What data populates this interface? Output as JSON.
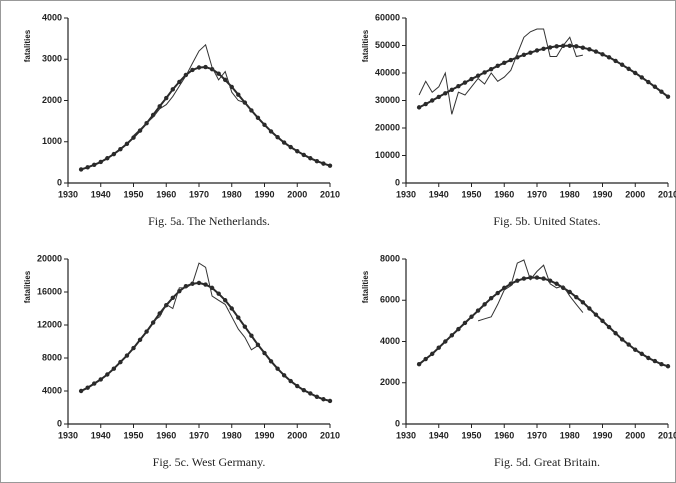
{
  "chart_data": [
    {
      "type": "line",
      "caption": "Fig. 5a. The Netherlands.",
      "ylabel": "fatalities",
      "x": [
        1934,
        1936,
        1938,
        1940,
        1942,
        1944,
        1946,
        1948,
        1950,
        1952,
        1954,
        1956,
        1958,
        1960,
        1962,
        1964,
        1966,
        1968,
        1970,
        1972,
        1974,
        1976,
        1978,
        1980,
        1982,
        1984,
        1986,
        1988,
        1990,
        1992,
        1994,
        1996,
        1998,
        2000,
        2002,
        2004,
        2006,
        2008,
        2010
      ],
      "xlim": [
        1930,
        2010
      ],
      "xticks": [
        1930,
        1940,
        1950,
        1960,
        1970,
        1980,
        1990,
        2000,
        2010
      ],
      "ylim": [
        0,
        4000
      ],
      "yticks": [
        0,
        1000,
        2000,
        3000,
        4000
      ],
      "series": [
        {
          "color": "#2a2a2a",
          "markers": true,
          "values": [
            330,
            380,
            440,
            510,
            600,
            700,
            820,
            950,
            1100,
            1270,
            1450,
            1650,
            1860,
            2060,
            2270,
            2450,
            2620,
            2740,
            2800,
            2810,
            2760,
            2650,
            2500,
            2330,
            2140,
            1950,
            1760,
            1580,
            1410,
            1250,
            1110,
            980,
            870,
            770,
            680,
            600,
            530,
            470,
            420
          ]
        },
        {
          "color": "#333333",
          "markers": false,
          "values": [
            null,
            null,
            null,
            null,
            null,
            null,
            null,
            null,
            1150,
            1300,
            1450,
            1600,
            1800,
            1900,
            2100,
            2350,
            2600,
            2900,
            3200,
            3350,
            2800,
            2500,
            2700,
            2200,
            2000,
            1950,
            1750,
            null,
            null,
            null,
            null,
            null,
            null,
            null,
            null,
            null,
            null,
            null,
            null
          ]
        }
      ]
    },
    {
      "type": "line",
      "caption": "Fig. 5b. United States.",
      "ylabel": "fatalities",
      "x": [
        1934,
        1936,
        1938,
        1940,
        1942,
        1944,
        1946,
        1948,
        1950,
        1952,
        1954,
        1956,
        1958,
        1960,
        1962,
        1964,
        1966,
        1968,
        1970,
        1972,
        1974,
        1976,
        1978,
        1980,
        1982,
        1984,
        1986,
        1988,
        1990,
        1992,
        1994,
        1996,
        1998,
        2000,
        2002,
        2004,
        2006,
        2008,
        2010
      ],
      "xlim": [
        1930,
        2010
      ],
      "xticks": [
        1930,
        1940,
        1950,
        1960,
        1970,
        1980,
        1990,
        2000,
        2010
      ],
      "ylim": [
        0,
        60000
      ],
      "yticks": [
        0,
        10000,
        20000,
        30000,
        40000,
        50000,
        60000
      ],
      "series": [
        {
          "color": "#2a2a2a",
          "markers": true,
          "values": [
            27500,
            28700,
            30000,
            31300,
            32600,
            33900,
            35200,
            36500,
            37800,
            39000,
            40200,
            41400,
            42600,
            43700,
            44700,
            45700,
            46600,
            47400,
            48200,
            48800,
            49300,
            49700,
            49900,
            49900,
            49700,
            49200,
            48600,
            47800,
            46800,
            45700,
            44400,
            43000,
            41500,
            40000,
            38400,
            36700,
            35000,
            33200,
            31400
          ]
        },
        {
          "color": "#333333",
          "markers": false,
          "values": [
            32000,
            37000,
            33000,
            35000,
            40000,
            25000,
            33000,
            32000,
            35000,
            38000,
            36000,
            40000,
            37000,
            38500,
            41000,
            47000,
            53000,
            55000,
            56000,
            56000,
            46000,
            46000,
            50000,
            53000,
            46000,
            46500,
            null,
            null,
            null,
            null,
            null,
            null,
            null,
            null,
            null,
            null,
            null,
            null,
            null
          ]
        }
      ]
    },
    {
      "type": "line",
      "caption": "Fig. 5c. West Germany.",
      "ylabel": "fatalities",
      "x": [
        1934,
        1936,
        1938,
        1940,
        1942,
        1944,
        1946,
        1948,
        1950,
        1952,
        1954,
        1956,
        1958,
        1960,
        1962,
        1964,
        1966,
        1968,
        1970,
        1972,
        1974,
        1976,
        1978,
        1980,
        1982,
        1984,
        1986,
        1988,
        1990,
        1992,
        1994,
        1996,
        1998,
        2000,
        2002,
        2004,
        2006,
        2008,
        2010
      ],
      "xlim": [
        1930,
        2010
      ],
      "xticks": [
        1930,
        1940,
        1950,
        1960,
        1970,
        1980,
        1990,
        2000,
        2010
      ],
      "ylim": [
        0,
        20000
      ],
      "yticks": [
        0,
        4000,
        8000,
        12000,
        16000,
        20000
      ],
      "series": [
        {
          "color": "#2a2a2a",
          "markers": true,
          "values": [
            4000,
            4400,
            4900,
            5400,
            6000,
            6700,
            7500,
            8300,
            9200,
            10200,
            11200,
            12300,
            13400,
            14400,
            15300,
            16100,
            16700,
            17000,
            17100,
            16900,
            16500,
            15800,
            15000,
            14000,
            12900,
            11800,
            10700,
            9600,
            8600,
            7600,
            6700,
            5900,
            5200,
            4600,
            4100,
            3700,
            3300,
            3000,
            2800
          ]
        },
        {
          "color": "#333333",
          "markers": false,
          "values": [
            null,
            null,
            null,
            null,
            null,
            null,
            null,
            null,
            null,
            null,
            null,
            12500,
            13000,
            14500,
            14000,
            16500,
            16500,
            17000,
            19500,
            19000,
            15500,
            15000,
            14500,
            13000,
            11500,
            10500,
            9000,
            9500,
            null,
            null,
            null,
            null,
            null,
            null,
            null,
            null,
            null,
            null,
            null
          ]
        }
      ]
    },
    {
      "type": "line",
      "caption": "Fig. 5d. Great Britain.",
      "ylabel": "fatalities",
      "x": [
        1934,
        1936,
        1938,
        1940,
        1942,
        1944,
        1946,
        1948,
        1950,
        1952,
        1954,
        1956,
        1958,
        1960,
        1962,
        1964,
        1966,
        1968,
        1970,
        1972,
        1974,
        1976,
        1978,
        1980,
        1982,
        1984,
        1986,
        1988,
        1990,
        1992,
        1994,
        1996,
        1998,
        2000,
        2002,
        2004,
        2006,
        2008,
        2010
      ],
      "xlim": [
        1930,
        2010
      ],
      "xticks": [
        1930,
        1940,
        1950,
        1960,
        1970,
        1980,
        1990,
        2000,
        2010
      ],
      "ylim": [
        0,
        8000
      ],
      "yticks": [
        0,
        2000,
        4000,
        6000,
        8000
      ],
      "series": [
        {
          "color": "#2a2a2a",
          "markers": true,
          "values": [
            2900,
            3150,
            3400,
            3700,
            4000,
            4300,
            4600,
            4900,
            5200,
            5500,
            5800,
            6100,
            6350,
            6600,
            6800,
            6950,
            7050,
            7100,
            7100,
            7050,
            6950,
            6800,
            6600,
            6400,
            6150,
            5900,
            5600,
            5300,
            5000,
            4700,
            4400,
            4100,
            3850,
            3600,
            3400,
            3200,
            3050,
            2900,
            2800
          ]
        },
        {
          "color": "#333333",
          "markers": false,
          "values": [
            null,
            null,
            null,
            null,
            null,
            null,
            null,
            null,
            null,
            5000,
            5100,
            5200,
            5800,
            6500,
            6700,
            7800,
            7950,
            7000,
            7400,
            7700,
            6800,
            6600,
            6700,
            6200,
            5800,
            5400,
            null,
            null,
            null,
            null,
            null,
            null,
            null,
            null,
            null,
            null,
            null,
            null,
            null
          ]
        }
      ]
    }
  ]
}
